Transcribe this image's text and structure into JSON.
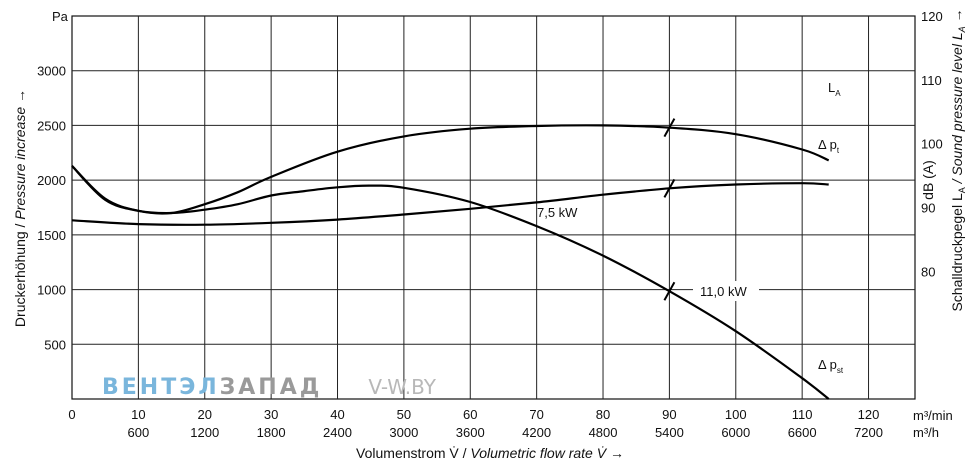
{
  "chart_data": {
    "type": "line",
    "title": "",
    "x_unit_top": "m³/min",
    "x_unit_bottom": "m³/h",
    "xlabel_de": "Volumenstrom V̇ / ",
    "xlabel_en": "Volumetric flow rate V̇ →",
    "ylabel_left_de": "Druckerhöhung / ",
    "ylabel_left_en": "Pressure increase →",
    "ylabel_right_prefix": "Schalldruckpegel L",
    "ylabel_right_sub": "A",
    "ylabel_right_en": " / Sound pressure level L",
    "ylabel_right_en_sub": "A",
    "ylabel_right_arrow": " →",
    "ylabel_right_unit": "dB (A)",
    "y_unit_left": "Pa",
    "xlim": [
      0,
      127
    ],
    "ylim_left": [
      0,
      3500
    ],
    "ylim_right": [
      60,
      120
    ],
    "x_ticks_min": [
      0,
      10,
      20,
      30,
      40,
      50,
      60,
      70,
      80,
      90,
      100,
      110,
      120
    ],
    "x_ticks_h": [
      "600",
      "1200",
      "1800",
      "2400",
      "3000",
      "3600",
      "4200",
      "4800",
      "5400",
      "6000",
      "6600",
      "7200"
    ],
    "y_ticks_left": [
      500,
      1000,
      1500,
      2000,
      2500,
      3000
    ],
    "y_ticks_right": [
      80,
      90,
      100,
      110,
      120
    ],
    "grid": true,
    "series": [
      {
        "name": "L",
        "name_sub": "A",
        "axis": "right",
        "x": [
          0,
          10,
          20,
          30,
          40,
          50,
          60,
          70,
          80,
          90,
          100,
          110,
          114
        ],
        "values": [
          88,
          87.4,
          87.3,
          87.6,
          88.1,
          88.9,
          89.8,
          90.8,
          92,
          93,
          93.6,
          93.8,
          93.6
        ]
      },
      {
        "name": "Δ p",
        "name_sub": "t",
        "axis": "left",
        "x": [
          0,
          5,
          10,
          15,
          20,
          25,
          30,
          40,
          50,
          60,
          70,
          80,
          90,
          100,
          110,
          114
        ],
        "values": [
          2130,
          1830,
          1720,
          1700,
          1780,
          1890,
          2030,
          2260,
          2400,
          2470,
          2495,
          2500,
          2480,
          2420,
          2280,
          2180
        ]
      },
      {
        "name": "Δ p",
        "name_sub": "st",
        "axis": "left",
        "x": [
          0,
          5,
          10,
          15,
          20,
          25,
          30,
          35,
          40,
          45,
          50,
          60,
          70,
          80,
          90,
          100,
          110,
          114
        ],
        "values": [
          2130,
          1820,
          1720,
          1700,
          1730,
          1780,
          1860,
          1900,
          1935,
          1950,
          1930,
          1800,
          1580,
          1310,
          985,
          620,
          190,
          0
        ]
      }
    ],
    "annotations": [
      {
        "text": "7,5 kW",
        "x": 74,
        "y": 1700
      },
      {
        "text": "11,0 kW",
        "x": 99,
        "y": 985
      }
    ],
    "markers_x": 90
  },
  "watermark": {
    "part1": "ВЕНТЭЛ",
    "part2": "ЗАПАД",
    "part3": "V-W.BY",
    "color1": "#7ab6dc",
    "color2": "#9a9a9a",
    "color3": "#b8b8b8"
  }
}
